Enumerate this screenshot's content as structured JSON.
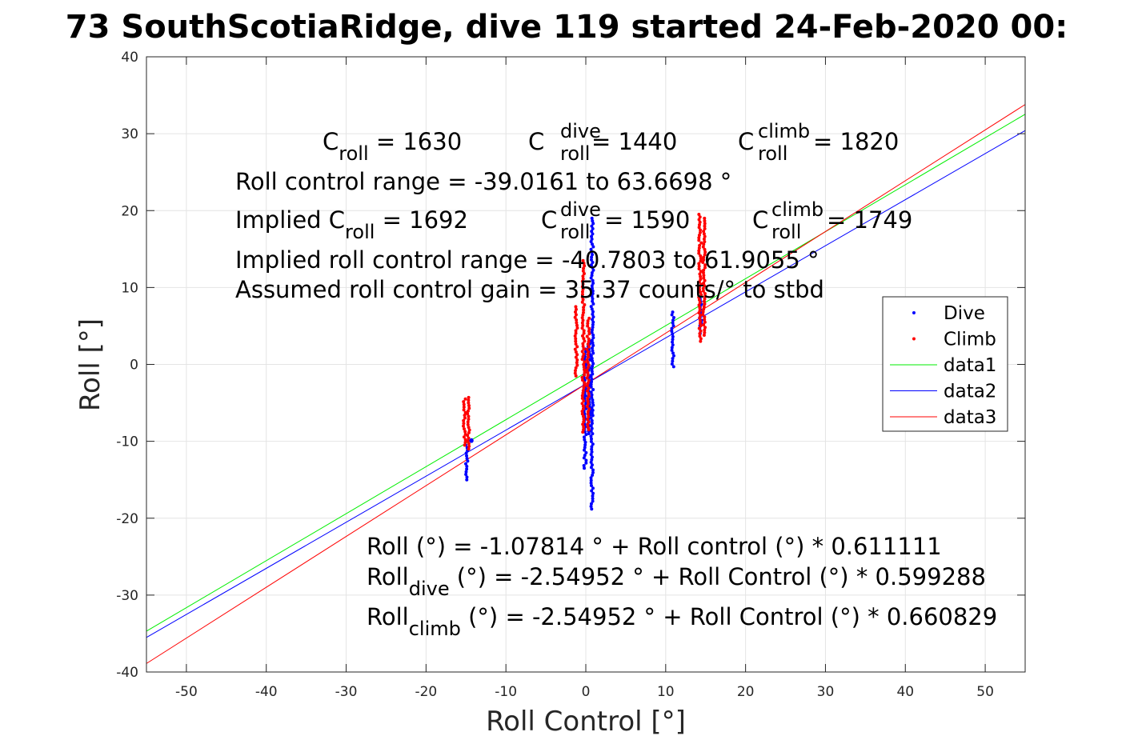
{
  "chart_data": {
    "type": "scatter",
    "title": "73 SouthScotiaRidge, dive 119 started 24-Feb-2020 00:",
    "xlabel": "Roll Control [°]",
    "ylabel": "Roll [°]",
    "xlim": [
      -55,
      55
    ],
    "ylim": [
      -40,
      40
    ],
    "xticks": [
      -50,
      -40,
      -30,
      -20,
      -10,
      0,
      10,
      20,
      30,
      40,
      50
    ],
    "yticks": [
      -40,
      -30,
      -20,
      -10,
      0,
      10,
      20,
      30,
      40
    ],
    "grid": true,
    "legend_position": "right",
    "annotations": {
      "croll": {
        "main": "C",
        "sub": "roll",
        "rest": " = 1630"
      },
      "croll_dive": {
        "main": "C",
        "sup": "dive",
        "sub": "roll",
        "rest": " = 1440"
      },
      "croll_climb": {
        "main": "C",
        "sup": "climb",
        "sub": "roll",
        "rest": " = 1820"
      },
      "range": "Roll control range = -39.0161 to 63.6698 °",
      "implied_pre": "Implied C",
      "implied_sub": "roll",
      "implied_rest": " = 1692",
      "implied_dive": {
        "main": "C",
        "sup": "dive",
        "sub": "roll",
        "rest": " = 1590"
      },
      "implied_climb": {
        "main": "C",
        "sup": "climb",
        "sub": "roll",
        "rest": " = 1749"
      },
      "implied_range": "Implied roll control range = -40.7803 to 61.9055 °",
      "gain": "Assumed roll control gain = 35.37 counts/° to stbd",
      "eq1": "Roll (°) = -1.07814 ° + Roll control (°) * 0.611111",
      "eq2_main": "Roll",
      "eq2_sub": "dive",
      "eq2_rest": " (°) = -2.54952 ° + Roll Control (°) * 0.599288",
      "eq3_main": "Roll",
      "eq3_sub": "climb",
      "eq3_rest": " (°) = -2.54952 ° + Roll Control (°) * 0.660829"
    },
    "series": [
      {
        "name": "Dive",
        "kind": "points",
        "color": "#0000ff",
        "clusters": [
          {
            "x": -14.9,
            "ymin": -15.0,
            "ymax": -10.5
          },
          {
            "x": -14.3,
            "ymin": -10.0,
            "ymax": -9.8
          },
          {
            "x": -0.1,
            "ymin": -13.5,
            "ymax": 2.0
          },
          {
            "x": 0.4,
            "ymin": -9.0,
            "ymax": 3.0
          },
          {
            "x": 0.8,
            "ymin": -18.8,
            "ymax": 19.0
          },
          {
            "x": 10.9,
            "ymin": -0.3,
            "ymax": 6.8
          },
          {
            "x": 14.4,
            "ymin": 4.0,
            "ymax": 8.5
          }
        ]
      },
      {
        "name": "Climb",
        "kind": "points",
        "color": "#ff0000",
        "clusters": [
          {
            "x": -15.2,
            "ymin": -10.5,
            "ymax": -4.5
          },
          {
            "x": -14.7,
            "ymin": -11.0,
            "ymax": -4.3
          },
          {
            "x": -1.2,
            "ymin": -1.5,
            "ymax": 7.5
          },
          {
            "x": -0.3,
            "ymin": -8.8,
            "ymax": 13.5
          },
          {
            "x": 0.3,
            "ymin": -8.5,
            "ymax": 6.0
          },
          {
            "x": 14.3,
            "ymin": 3.0,
            "ymax": 19.5
          },
          {
            "x": 14.8,
            "ymin": 3.8,
            "ymax": 19.0
          }
        ]
      },
      {
        "name": "data1",
        "kind": "line",
        "color": "#00ee00",
        "intercept": -1.07814,
        "slope": 0.611111
      },
      {
        "name": "data2",
        "kind": "line",
        "color": "#0000ff",
        "intercept": -2.54952,
        "slope": 0.599288
      },
      {
        "name": "data3",
        "kind": "line",
        "color": "#ff0000",
        "intercept": -2.54952,
        "slope": 0.660829
      }
    ],
    "legend": [
      "Dive",
      "Climb",
      "data1",
      "data2",
      "data3"
    ]
  }
}
